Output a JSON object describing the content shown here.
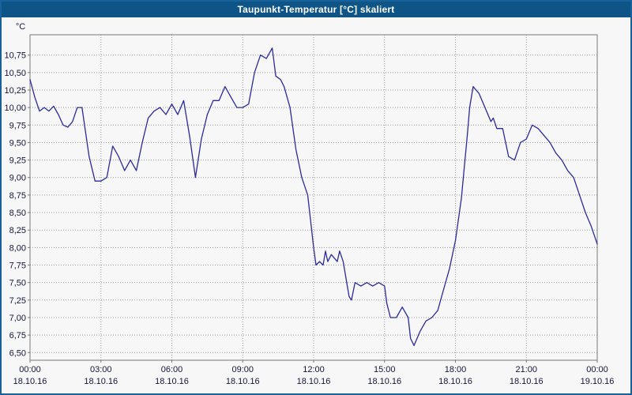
{
  "title": "Taupunkt-Temperatur [°C] skaliert",
  "colors": {
    "frame_border": "#17629b",
    "titlebar_bg": "#0e5486",
    "titlebar_text": "#ffffff",
    "background": "#f7f7f7",
    "grid": "#999999",
    "plot_border": "#7a7a7a",
    "tick_text": "#14143c",
    "line": "#2a2aa0"
  },
  "chart_data": {
    "type": "line",
    "title": "Taupunkt-Temperatur [°C] skaliert",
    "ylabel": "°C",
    "xlabel": "",
    "grid": "dotted",
    "legend": "none",
    "ylim": [
      6.39,
      11.04
    ],
    "xlim": [
      0,
      24
    ],
    "y_ticks": [
      "6,50",
      "6,75",
      "7,00",
      "7,25",
      "7,50",
      "7,75",
      "8,00",
      "8,25",
      "8,50",
      "8,75",
      "9,00",
      "9,25",
      "9,50",
      "9,75",
      "10,00",
      "10,25",
      "10,50",
      "10,75"
    ],
    "y_tick_values": [
      6.5,
      6.75,
      7.0,
      7.25,
      7.5,
      7.75,
      8.0,
      8.25,
      8.5,
      8.75,
      9.0,
      9.25,
      9.5,
      9.75,
      10.0,
      10.25,
      10.5,
      10.75
    ],
    "x_ticks": [
      {
        "hour": 0,
        "time": "00:00",
        "date": "18.10.16"
      },
      {
        "hour": 3,
        "time": "03:00",
        "date": "18.10.16"
      },
      {
        "hour": 6,
        "time": "06:00",
        "date": "18.10.16"
      },
      {
        "hour": 9,
        "time": "09:00",
        "date": "18.10.16"
      },
      {
        "hour": 12,
        "time": "12:00",
        "date": "18.10.16"
      },
      {
        "hour": 15,
        "time": "15:00",
        "date": "18.10.16"
      },
      {
        "hour": 18,
        "time": "18:00",
        "date": "18.10.16"
      },
      {
        "hour": 21,
        "time": "21:00",
        "date": "18.10.16"
      },
      {
        "hour": 24,
        "time": "00:00",
        "date": "19.10.16"
      }
    ],
    "series": [
      {
        "name": "Taupunkt-Temperatur",
        "x": [
          0,
          0.2,
          0.4,
          0.6,
          0.8,
          1.0,
          1.2,
          1.4,
          1.6,
          1.8,
          2.0,
          2.2,
          2.5,
          2.75,
          3.0,
          3.25,
          3.5,
          3.75,
          4.0,
          4.25,
          4.5,
          4.75,
          5.0,
          5.25,
          5.5,
          5.75,
          6.0,
          6.25,
          6.5,
          6.75,
          7.0,
          7.25,
          7.5,
          7.75,
          8.0,
          8.25,
          8.5,
          8.75,
          9.0,
          9.25,
          9.5,
          9.75,
          10.0,
          10.25,
          10.4,
          10.6,
          10.75,
          11.0,
          11.25,
          11.5,
          11.75,
          12.0,
          12.1,
          12.25,
          12.4,
          12.5,
          12.6,
          12.75,
          13.0,
          13.1,
          13.25,
          13.5,
          13.6,
          13.75,
          14.0,
          14.25,
          14.5,
          14.75,
          15.0,
          15.1,
          15.25,
          15.5,
          15.75,
          16.0,
          16.1,
          16.25,
          16.5,
          16.75,
          17.0,
          17.25,
          17.5,
          17.75,
          18.0,
          18.25,
          18.5,
          18.6,
          18.75,
          19.0,
          19.25,
          19.5,
          19.6,
          19.75,
          20.0,
          20.25,
          20.5,
          20.75,
          21.0,
          21.25,
          21.5,
          21.75,
          22.0,
          22.25,
          22.5,
          22.75,
          23.0,
          23.25,
          23.5,
          23.75,
          24.0
        ],
        "y": [
          10.4,
          10.15,
          9.95,
          10.0,
          9.95,
          10.02,
          9.9,
          9.75,
          9.72,
          9.8,
          10.0,
          10.0,
          9.3,
          8.95,
          8.95,
          9.0,
          9.45,
          9.3,
          9.1,
          9.25,
          9.1,
          9.5,
          9.85,
          9.95,
          10.0,
          9.9,
          10.05,
          9.9,
          10.1,
          9.6,
          9.0,
          9.55,
          9.9,
          10.1,
          10.1,
          10.3,
          10.15,
          10.0,
          10.0,
          10.05,
          10.5,
          10.75,
          10.7,
          10.85,
          10.45,
          10.4,
          10.3,
          10.0,
          9.4,
          9.0,
          8.75,
          8.0,
          7.75,
          7.8,
          7.75,
          7.95,
          7.8,
          7.9,
          7.8,
          7.95,
          7.8,
          7.3,
          7.25,
          7.5,
          7.45,
          7.5,
          7.45,
          7.5,
          7.45,
          7.2,
          7.0,
          7.0,
          7.15,
          7.0,
          6.7,
          6.6,
          6.8,
          6.95,
          7.0,
          7.1,
          7.4,
          7.7,
          8.1,
          8.7,
          9.6,
          10.0,
          10.3,
          10.2,
          10.0,
          9.8,
          9.85,
          9.7,
          9.7,
          9.3,
          9.25,
          9.5,
          9.55,
          9.75,
          9.7,
          9.6,
          9.5,
          9.35,
          9.25,
          9.1,
          9.0,
          8.75,
          8.5,
          8.3,
          8.05
        ]
      }
    ]
  }
}
